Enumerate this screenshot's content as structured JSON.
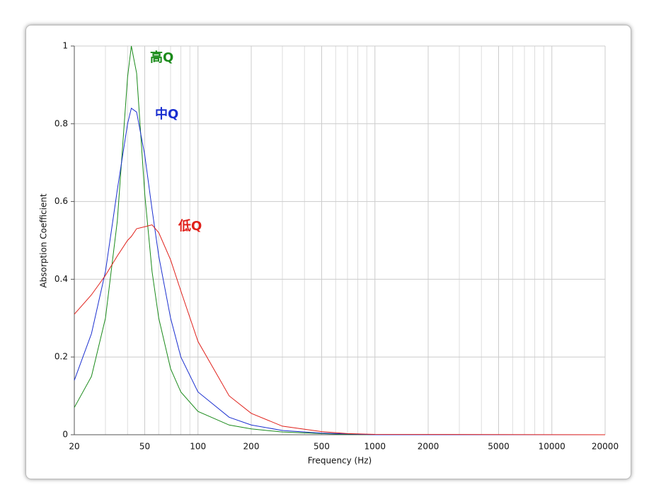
{
  "chart_data": {
    "type": "line",
    "xlabel": "Frequency (Hz)",
    "ylabel": "Absorption Coefficient",
    "log_x": true,
    "grid": true,
    "x": [
      20,
      25,
      30,
      35,
      40,
      42,
      45,
      50,
      55,
      60,
      70,
      80,
      100,
      150,
      200,
      300,
      500,
      700,
      1000,
      20000
    ],
    "series": [
      {
        "name": "高Q",
        "color": "#1a8a1a",
        "values": [
          0.07,
          0.15,
          0.3,
          0.55,
          0.92,
          1.0,
          0.93,
          0.62,
          0.42,
          0.3,
          0.17,
          0.11,
          0.06,
          0.025,
          0.015,
          0.007,
          0.003,
          0.001,
          0,
          0
        ]
      },
      {
        "name": "中Q",
        "color": "#1a2fd0",
        "values": [
          0.14,
          0.26,
          0.42,
          0.63,
          0.8,
          0.84,
          0.83,
          0.72,
          0.58,
          0.46,
          0.3,
          0.2,
          0.11,
          0.045,
          0.025,
          0.011,
          0.004,
          0.002,
          0,
          0
        ]
      },
      {
        "name": "低Q",
        "color": "#e0201a",
        "values": [
          0.31,
          0.36,
          0.41,
          0.46,
          0.5,
          0.51,
          0.53,
          0.535,
          0.54,
          0.52,
          0.45,
          0.37,
          0.24,
          0.1,
          0.055,
          0.022,
          0.008,
          0.003,
          0.001,
          0
        ]
      }
    ],
    "xlim": [
      20,
      20000
    ],
    "xticks": [
      20,
      50,
      100,
      200,
      500,
      1000,
      2000,
      5000,
      10000,
      20000
    ],
    "x_minor_ticks": [
      30,
      40,
      60,
      70,
      80,
      90,
      300,
      400,
      600,
      700,
      800,
      900,
      3000,
      4000,
      6000,
      7000,
      8000,
      9000
    ],
    "ylim": [
      0,
      1
    ],
    "yticks": [
      0,
      0.2,
      0.4,
      0.6,
      0.8,
      1
    ]
  }
}
